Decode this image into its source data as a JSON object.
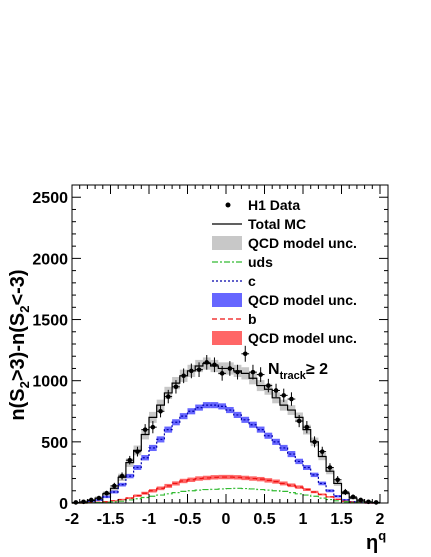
{
  "chart_data": {
    "type": "histogram",
    "ylabel": "n(S₂>3)-n(S₂<-3)",
    "ylabel_parts": {
      "main": "n(S",
      "sub1": "2",
      "mid": ">3)-n(S",
      "sub2": "2",
      "end": "<-3)"
    },
    "xlabel": "ηq",
    "xlabel_parts": {
      "main": "η",
      "sup": "q"
    },
    "xlim": [
      -2,
      2
    ],
    "ylim": [
      0,
      2600
    ],
    "x_ticks": [
      "-2",
      "-1.5",
      "-1",
      "-0.5",
      "0",
      "0.5",
      "1",
      "1.5",
      "2"
    ],
    "x_tick_values": [
      -2,
      -1.5,
      -1,
      -0.5,
      0,
      0.5,
      1,
      1.5,
      2
    ],
    "y_ticks": [
      "0",
      "500",
      "1000",
      "1500",
      "2000",
      "2500"
    ],
    "y_tick_values": [
      0,
      500,
      1000,
      1500,
      2000,
      2500
    ],
    "annotation": {
      "main": "N",
      "sub": "track",
      "rest": "≥ 2"
    },
    "legend": [
      {
        "key": "data",
        "label": "H1 Data"
      },
      {
        "key": "total",
        "label": "Total MC"
      },
      {
        "key": "total_unc",
        "label": "QCD model unc."
      },
      {
        "key": "uds",
        "label": "uds"
      },
      {
        "key": "c",
        "label": "c"
      },
      {
        "key": "c_unc",
        "label": "QCD model unc."
      },
      {
        "key": "b",
        "label": "b"
      },
      {
        "key": "b_unc",
        "label": "QCD model unc."
      }
    ],
    "colors": {
      "data": "#000000",
      "total": "#000000",
      "total_band": "#c8c8c8",
      "uds": "#33bb33",
      "c": "#0000aa",
      "c_band": "#6666ff",
      "b": "#ee1111",
      "b_band": "#ff6666"
    },
    "bin_edges": [
      -2.0,
      -1.9,
      -1.8,
      -1.7,
      -1.6,
      -1.5,
      -1.4,
      -1.3,
      -1.2,
      -1.1,
      -1.0,
      -0.9,
      -0.8,
      -0.7,
      -0.6,
      -0.5,
      -0.4,
      -0.3,
      -0.2,
      -0.1,
      0.0,
      0.1,
      0.2,
      0.3,
      0.4,
      0.5,
      0.6,
      0.7,
      0.8,
      0.9,
      1.0,
      1.1,
      1.2,
      1.3,
      1.4,
      1.5,
      1.6,
      1.7,
      1.8,
      1.9,
      2.0
    ],
    "series": [
      {
        "name": "Total MC",
        "kind": "step",
        "values": [
          0,
          5,
          20,
          40,
          75,
          120,
          210,
          330,
          430,
          560,
          700,
          800,
          900,
          980,
          1040,
          1080,
          1120,
          1140,
          1120,
          1100,
          1100,
          1080,
          1060,
          1020,
          960,
          930,
          860,
          800,
          760,
          700,
          600,
          500,
          380,
          260,
          160,
          80,
          40,
          15,
          5,
          0
        ],
        "band_halfwidth": [
          0,
          5,
          10,
          15,
          20,
          25,
          30,
          35,
          40,
          40,
          45,
          45,
          50,
          50,
          50,
          50,
          50,
          50,
          50,
          50,
          50,
          50,
          50,
          50,
          45,
          45,
          45,
          45,
          40,
          40,
          40,
          35,
          30,
          25,
          20,
          15,
          10,
          5,
          5,
          0
        ]
      },
      {
        "name": "c",
        "kind": "step",
        "values": [
          0,
          2,
          10,
          25,
          50,
          90,
          150,
          220,
          290,
          370,
          450,
          520,
          600,
          660,
          710,
          750,
          780,
          800,
          800,
          790,
          760,
          720,
          680,
          640,
          600,
          550,
          500,
          450,
          400,
          340,
          290,
          230,
          160,
          100,
          55,
          25,
          10,
          3,
          1,
          0
        ],
        "band_halfwidth": [
          0,
          2,
          5,
          8,
          10,
          12,
          15,
          18,
          20,
          22,
          25,
          25,
          25,
          25,
          25,
          25,
          25,
          25,
          25,
          25,
          25,
          25,
          25,
          25,
          25,
          25,
          25,
          25,
          25,
          22,
          20,
          18,
          15,
          12,
          10,
          8,
          5,
          2,
          1,
          0
        ]
      },
      {
        "name": "b",
        "kind": "step",
        "values": [
          0,
          1,
          3,
          6,
          10,
          18,
          28,
          40,
          60,
          80,
          100,
          120,
          140,
          160,
          180,
          190,
          200,
          205,
          210,
          212,
          212,
          210,
          205,
          200,
          195,
          185,
          175,
          160,
          145,
          130,
          110,
          90,
          70,
          50,
          30,
          15,
          8,
          3,
          1,
          0
        ],
        "band_halfwidth": [
          0,
          1,
          2,
          3,
          4,
          5,
          6,
          8,
          10,
          12,
          14,
          15,
          16,
          17,
          18,
          18,
          18,
          18,
          18,
          18,
          18,
          18,
          18,
          18,
          18,
          18,
          17,
          16,
          15,
          14,
          12,
          10,
          8,
          6,
          5,
          3,
          2,
          1,
          1,
          0
        ]
      },
      {
        "name": "uds",
        "kind": "step",
        "values": [
          0,
          0,
          1,
          3,
          5,
          10,
          15,
          25,
          35,
          45,
          55,
          65,
          75,
          85,
          95,
          100,
          105,
          110,
          112,
          115,
          118,
          120,
          118,
          115,
          110,
          105,
          100,
          95,
          85,
          75,
          65,
          55,
          40,
          28,
          18,
          10,
          5,
          2,
          1,
          0
        ]
      }
    ],
    "data_points": {
      "name": "H1 Data",
      "x": [
        -1.95,
        -1.85,
        -1.75,
        -1.65,
        -1.55,
        -1.45,
        -1.35,
        -1.25,
        -1.15,
        -1.05,
        -0.95,
        -0.85,
        -0.75,
        -0.65,
        -0.55,
        -0.45,
        -0.35,
        -0.25,
        -0.15,
        -0.05,
        0.05,
        0.15,
        0.25,
        0.35,
        0.45,
        0.55,
        0.65,
        0.75,
        0.85,
        0.95,
        1.05,
        1.15,
        1.25,
        1.35,
        1.45,
        1.55,
        1.65,
        1.75,
        1.85,
        1.95
      ],
      "y": [
        5,
        10,
        25,
        40,
        80,
        140,
        220,
        350,
        420,
        600,
        620,
        750,
        870,
        950,
        1040,
        1080,
        1090,
        1150,
        1130,
        1060,
        1100,
        1070,
        1220,
        1070,
        1050,
        960,
        920,
        880,
        850,
        670,
        620,
        500,
        420,
        290,
        190,
        90,
        50,
        25,
        10,
        5
      ],
      "yerr": [
        5,
        8,
        12,
        15,
        20,
        25,
        30,
        35,
        40,
        45,
        50,
        50,
        55,
        55,
        60,
        60,
        60,
        60,
        60,
        60,
        60,
        60,
        65,
        60,
        60,
        55,
        55,
        55,
        55,
        50,
        50,
        45,
        40,
        35,
        30,
        25,
        20,
        12,
        8,
        5
      ]
    }
  }
}
